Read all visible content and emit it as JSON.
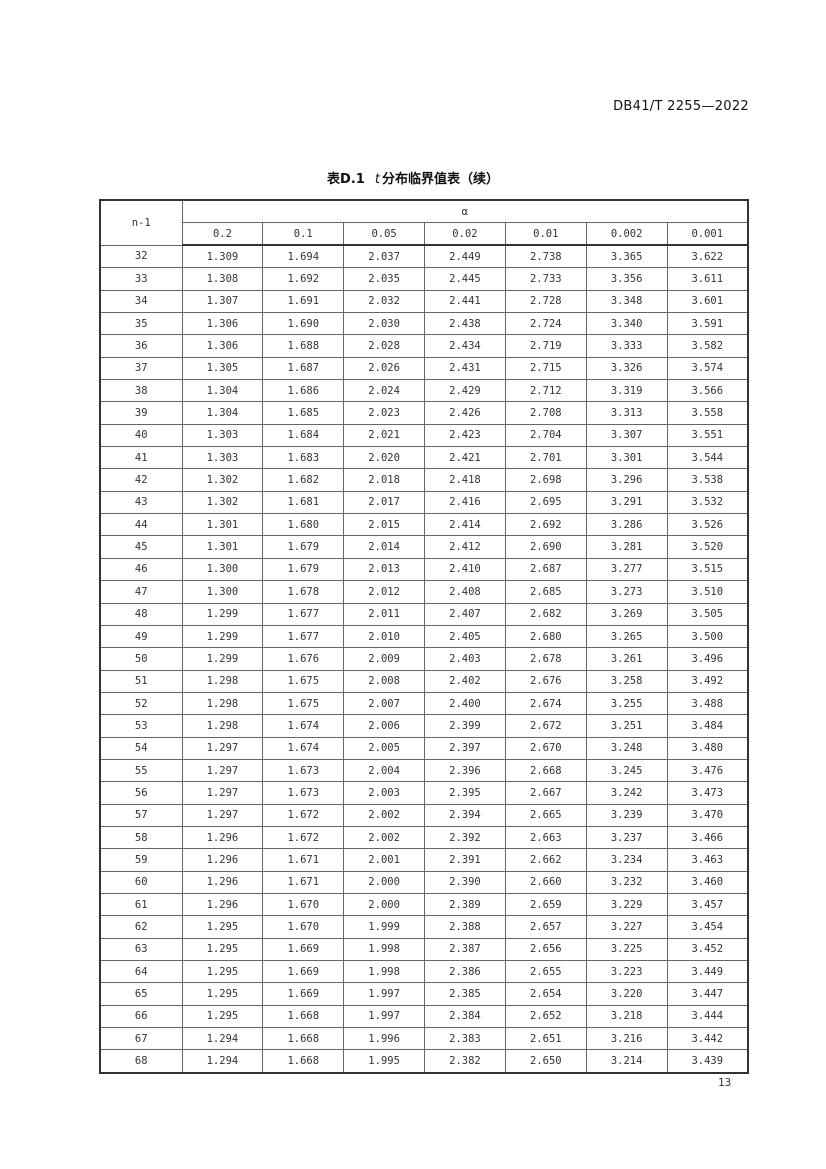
{
  "header": {
    "standard_code": "DB41/T 2255—2022"
  },
  "table": {
    "title_prefix": "表D.1",
    "title_italic": "t",
    "title_suffix": "分布临界值表（续）",
    "row_header": "n-1",
    "group_header": "α",
    "columns": [
      "0.2",
      "0.1",
      "0.05",
      "0.02",
      "0.01",
      "0.002",
      "0.001"
    ],
    "rows": [
      [
        "32",
        "1.309",
        "1.694",
        "2.037",
        "2.449",
        "2.738",
        "3.365",
        "3.622"
      ],
      [
        "33",
        "1.308",
        "1.692",
        "2.035",
        "2.445",
        "2.733",
        "3.356",
        "3.611"
      ],
      [
        "34",
        "1.307",
        "1.691",
        "2.032",
        "2.441",
        "2.728",
        "3.348",
        "3.601"
      ],
      [
        "35",
        "1.306",
        "1.690",
        "2.030",
        "2.438",
        "2.724",
        "3.340",
        "3.591"
      ],
      [
        "36",
        "1.306",
        "1.688",
        "2.028",
        "2.434",
        "2.719",
        "3.333",
        "3.582"
      ],
      [
        "37",
        "1.305",
        "1.687",
        "2.026",
        "2.431",
        "2.715",
        "3.326",
        "3.574"
      ],
      [
        "38",
        "1.304",
        "1.686",
        "2.024",
        "2.429",
        "2.712",
        "3.319",
        "3.566"
      ],
      [
        "39",
        "1.304",
        "1.685",
        "2.023",
        "2.426",
        "2.708",
        "3.313",
        "3.558"
      ],
      [
        "40",
        "1.303",
        "1.684",
        "2.021",
        "2.423",
        "2.704",
        "3.307",
        "3.551"
      ],
      [
        "41",
        "1.303",
        "1.683",
        "2.020",
        "2.421",
        "2.701",
        "3.301",
        "3.544"
      ],
      [
        "42",
        "1.302",
        "1.682",
        "2.018",
        "2.418",
        "2.698",
        "3.296",
        "3.538"
      ],
      [
        "43",
        "1.302",
        "1.681",
        "2.017",
        "2.416",
        "2.695",
        "3.291",
        "3.532"
      ],
      [
        "44",
        "1.301",
        "1.680",
        "2.015",
        "2.414",
        "2.692",
        "3.286",
        "3.526"
      ],
      [
        "45",
        "1.301",
        "1.679",
        "2.014",
        "2.412",
        "2.690",
        "3.281",
        "3.520"
      ],
      [
        "46",
        "1.300",
        "1.679",
        "2.013",
        "2.410",
        "2.687",
        "3.277",
        "3.515"
      ],
      [
        "47",
        "1.300",
        "1.678",
        "2.012",
        "2.408",
        "2.685",
        "3.273",
        "3.510"
      ],
      [
        "48",
        "1.299",
        "1.677",
        "2.011",
        "2.407",
        "2.682",
        "3.269",
        "3.505"
      ],
      [
        "49",
        "1.299",
        "1.677",
        "2.010",
        "2.405",
        "2.680",
        "3.265",
        "3.500"
      ],
      [
        "50",
        "1.299",
        "1.676",
        "2.009",
        "2.403",
        "2.678",
        "3.261",
        "3.496"
      ],
      [
        "51",
        "1.298",
        "1.675",
        "2.008",
        "2.402",
        "2.676",
        "3.258",
        "3.492"
      ],
      [
        "52",
        "1.298",
        "1.675",
        "2.007",
        "2.400",
        "2.674",
        "3.255",
        "3.488"
      ],
      [
        "53",
        "1.298",
        "1.674",
        "2.006",
        "2.399",
        "2.672",
        "3.251",
        "3.484"
      ],
      [
        "54",
        "1.297",
        "1.674",
        "2.005",
        "2.397",
        "2.670",
        "3.248",
        "3.480"
      ],
      [
        "55",
        "1.297",
        "1.673",
        "2.004",
        "2.396",
        "2.668",
        "3.245",
        "3.476"
      ],
      [
        "56",
        "1.297",
        "1.673",
        "2.003",
        "2.395",
        "2.667",
        "3.242",
        "3.473"
      ],
      [
        "57",
        "1.297",
        "1.672",
        "2.002",
        "2.394",
        "2.665",
        "3.239",
        "3.470"
      ],
      [
        "58",
        "1.296",
        "1.672",
        "2.002",
        "2.392",
        "2.663",
        "3.237",
        "3.466"
      ],
      [
        "59",
        "1.296",
        "1.671",
        "2.001",
        "2.391",
        "2.662",
        "3.234",
        "3.463"
      ],
      [
        "60",
        "1.296",
        "1.671",
        "2.000",
        "2.390",
        "2.660",
        "3.232",
        "3.460"
      ],
      [
        "61",
        "1.296",
        "1.670",
        "2.000",
        "2.389",
        "2.659",
        "3.229",
        "3.457"
      ],
      [
        "62",
        "1.295",
        "1.670",
        "1.999",
        "2.388",
        "2.657",
        "3.227",
        "3.454"
      ],
      [
        "63",
        "1.295",
        "1.669",
        "1.998",
        "2.387",
        "2.656",
        "3.225",
        "3.452"
      ],
      [
        "64",
        "1.295",
        "1.669",
        "1.998",
        "2.386",
        "2.655",
        "3.223",
        "3.449"
      ],
      [
        "65",
        "1.295",
        "1.669",
        "1.997",
        "2.385",
        "2.654",
        "3.220",
        "3.447"
      ],
      [
        "66",
        "1.295",
        "1.668",
        "1.997",
        "2.384",
        "2.652",
        "3.218",
        "3.444"
      ],
      [
        "67",
        "1.294",
        "1.668",
        "1.996",
        "2.383",
        "2.651",
        "3.216",
        "3.442"
      ],
      [
        "68",
        "1.294",
        "1.668",
        "1.995",
        "2.382",
        "2.650",
        "3.214",
        "3.439"
      ]
    ]
  },
  "footer": {
    "page_number": "13"
  }
}
